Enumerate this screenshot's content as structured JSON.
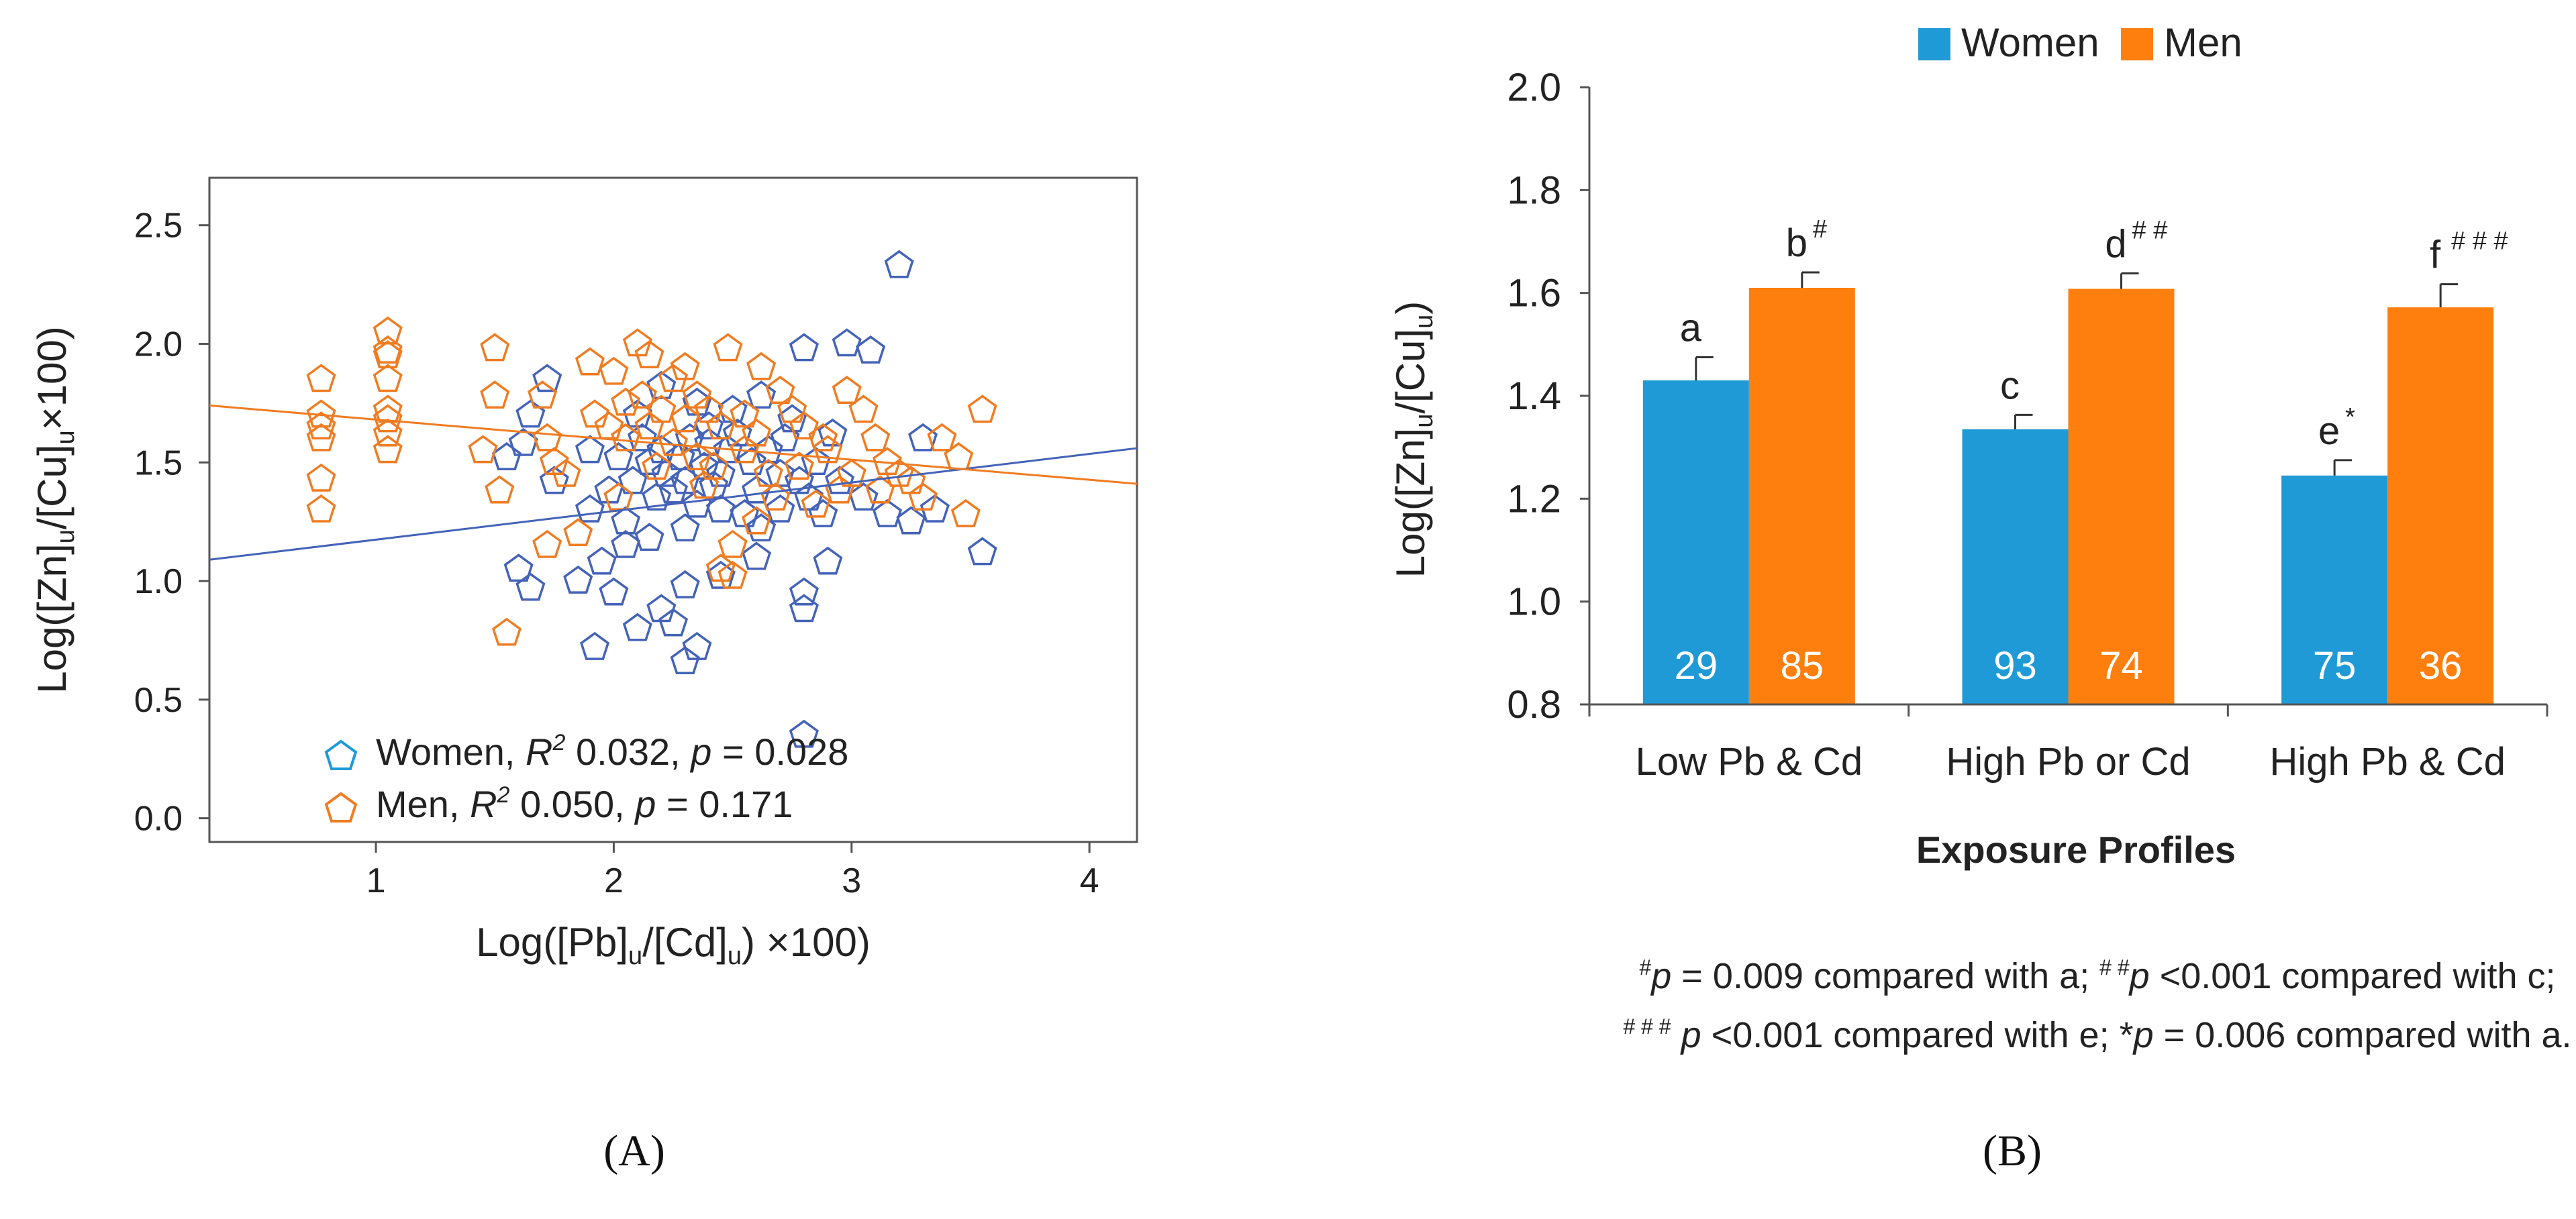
{
  "chart_data": [
    {
      "type": "scatter",
      "panel": "(A)",
      "xlabel": "Log([Pb]u/[Cd]u) ×100",
      "ylabel": "Log([Zn]u/[Cu]u×100)",
      "xlim": [
        0.3,
        4.2
      ],
      "ylim": [
        -0.1,
        2.7
      ],
      "xticks": [
        1,
        2,
        3,
        4
      ],
      "yticks": [
        0.0,
        0.5,
        1.0,
        1.5,
        2.0,
        2.5
      ],
      "ytick_labels": [
        "0.0",
        "0.5",
        "1.0",
        "1.5",
        "2.0",
        "2.5"
      ],
      "grid": false,
      "legend_position": "bottom-left",
      "series": [
        {
          "name": "Women",
          "legend_parts": [
            "Women, ",
            "R",
            "2",
            " 0.032, ",
            "p",
            " = 0.028"
          ],
          "color": "#4463b8",
          "legend_icon_color": "#1f9ad6",
          "fit_line": [
            [
              0.3,
              1.09
            ],
            [
              4.2,
              1.56
            ]
          ],
          "points": [
            [
              3.2,
              2.33
            ],
            [
              2.98,
              2.0
            ],
            [
              3.08,
              1.97
            ],
            [
              2.8,
              1.98
            ],
            [
              2.62,
              1.78
            ],
            [
              2.75,
              1.68
            ],
            [
              2.5,
              1.72
            ],
            [
              2.35,
              1.75
            ],
            [
              2.2,
              1.82
            ],
            [
              2.4,
              1.65
            ],
            [
              2.1,
              1.7
            ],
            [
              1.9,
              1.55
            ],
            [
              1.72,
              1.85
            ],
            [
              1.65,
              1.7
            ],
            [
              1.62,
              1.58
            ],
            [
              1.55,
              1.52
            ],
            [
              1.75,
              1.42
            ],
            [
              1.9,
              1.3
            ],
            [
              2.05,
              1.25
            ],
            [
              2.15,
              1.18
            ],
            [
              2.3,
              1.22
            ],
            [
              2.45,
              1.3
            ],
            [
              2.6,
              1.38
            ],
            [
              2.7,
              1.45
            ],
            [
              2.85,
              1.5
            ],
            [
              2.95,
              1.42
            ],
            [
              3.05,
              1.35
            ],
            [
              3.15,
              1.28
            ],
            [
              3.25,
              1.25
            ],
            [
              3.35,
              1.3
            ],
            [
              3.3,
              1.6
            ],
            [
              3.55,
              1.12
            ],
            [
              2.9,
              1.08
            ],
            [
              2.6,
              1.1
            ],
            [
              2.45,
              1.02
            ],
            [
              2.3,
              0.98
            ],
            [
              2.2,
              0.88
            ],
            [
              2.25,
              0.82
            ],
            [
              2.1,
              0.8
            ],
            [
              2.35,
              0.72
            ],
            [
              2.3,
              0.66
            ],
            [
              1.92,
              0.72
            ],
            [
              2.0,
              0.95
            ],
            [
              2.8,
              0.95
            ],
            [
              2.8,
              0.88
            ],
            [
              2.8,
              0.35
            ],
            [
              1.6,
              1.05
            ],
            [
              1.65,
              0.97
            ],
            [
              1.85,
              1.0
            ],
            [
              1.95,
              1.08
            ],
            [
              2.05,
              1.15
            ],
            [
              2.18,
              1.35
            ],
            [
              2.22,
              1.45
            ],
            [
              2.28,
              1.52
            ],
            [
              2.32,
              1.6
            ],
            [
              2.38,
              1.48
            ],
            [
              2.42,
              1.4
            ],
            [
              2.48,
              1.55
            ],
            [
              2.52,
              1.62
            ],
            [
              2.58,
              1.5
            ],
            [
              2.65,
              1.55
            ],
            [
              2.72,
              1.6
            ],
            [
              2.78,
              1.42
            ],
            [
              2.82,
              1.35
            ],
            [
              2.88,
              1.28
            ],
            [
              2.92,
              1.62
            ],
            [
              2.12,
              1.6
            ],
            [
              2.08,
              1.42
            ],
            [
              2.02,
              1.52
            ],
            [
              1.98,
              1.38
            ],
            [
              2.15,
              1.5
            ],
            [
              2.25,
              1.38
            ],
            [
              2.35,
              1.32
            ],
            [
              2.45,
              1.45
            ],
            [
              2.55,
              1.28
            ],
            [
              2.62,
              1.22
            ],
            [
              2.7,
              1.3
            ],
            [
              2.3,
              1.42
            ],
            [
              2.2,
              1.55
            ],
            [
              2.4,
              1.58
            ]
          ]
        },
        {
          "name": "Men",
          "legend_parts": [
            "Men, ",
            "R",
            "2",
            " 0.050, ",
            "p",
            " = 0.171"
          ],
          "color": "#f07c22",
          "legend_icon_color": "#f07c22",
          "fit_line": [
            [
              0.3,
              1.74
            ],
            [
              4.2,
              1.41
            ]
          ],
          "points": [
            [
              0.77,
              1.85
            ],
            [
              0.77,
              1.7
            ],
            [
              0.77,
              1.65
            ],
            [
              0.77,
              1.6
            ],
            [
              0.77,
              1.43
            ],
            [
              0.77,
              1.3
            ],
            [
              1.05,
              2.05
            ],
            [
              1.05,
              1.97
            ],
            [
              1.05,
              1.95
            ],
            [
              1.05,
              1.85
            ],
            [
              1.05,
              1.72
            ],
            [
              1.05,
              1.68
            ],
            [
              1.05,
              1.62
            ],
            [
              1.05,
              1.55
            ],
            [
              1.5,
              1.98
            ],
            [
              1.5,
              1.78
            ],
            [
              1.45,
              1.55
            ],
            [
              1.52,
              1.38
            ],
            [
              1.55,
              0.78
            ],
            [
              1.7,
              1.78
            ],
            [
              1.72,
              1.6
            ],
            [
              1.75,
              1.5
            ],
            [
              1.8,
              1.45
            ],
            [
              1.72,
              1.15
            ],
            [
              1.85,
              1.2
            ],
            [
              1.9,
              1.92
            ],
            [
              2.0,
              1.88
            ],
            [
              2.05,
              1.75
            ],
            [
              2.1,
              2.0
            ],
            [
              2.15,
              1.95
            ],
            [
              2.25,
              1.85
            ],
            [
              2.35,
              1.78
            ],
            [
              2.48,
              1.98
            ],
            [
              2.55,
              1.7
            ],
            [
              2.62,
              1.9
            ],
            [
              2.7,
              1.8
            ],
            [
              2.75,
              1.72
            ],
            [
              2.8,
              1.65
            ],
            [
              2.9,
              1.55
            ],
            [
              2.98,
              1.8
            ],
            [
              3.05,
              1.72
            ],
            [
              3.1,
              1.6
            ],
            [
              3.15,
              1.5
            ],
            [
              3.2,
              1.45
            ],
            [
              3.25,
              1.42
            ],
            [
              3.3,
              1.35
            ],
            [
              3.38,
              1.6
            ],
            [
              3.45,
              1.52
            ],
            [
              3.55,
              1.72
            ],
            [
              3.48,
              1.28
            ],
            [
              3.0,
              1.45
            ],
            [
              2.95,
              1.38
            ],
            [
              2.85,
              1.32
            ],
            [
              2.65,
              1.45
            ],
            [
              2.6,
              1.62
            ],
            [
              2.55,
              1.55
            ],
            [
              2.45,
              1.65
            ],
            [
              2.4,
              1.72
            ],
            [
              2.3,
              1.68
            ],
            [
              2.2,
              1.72
            ],
            [
              2.12,
              1.78
            ],
            [
              2.05,
              1.6
            ],
            [
              1.98,
              1.65
            ],
            [
              1.92,
              1.7
            ],
            [
              2.25,
              1.58
            ],
            [
              2.35,
              1.52
            ],
            [
              2.42,
              1.48
            ],
            [
              2.18,
              1.48
            ],
            [
              2.5,
              1.15
            ],
            [
              2.45,
              1.05
            ],
            [
              2.5,
              1.02
            ],
            [
              2.6,
              1.25
            ],
            [
              2.38,
              1.4
            ],
            [
              2.02,
              1.35
            ],
            [
              2.68,
              1.35
            ],
            [
              2.78,
              1.48
            ],
            [
              2.88,
              1.6
            ],
            [
              3.12,
              1.38
            ],
            [
              2.15,
              1.65
            ],
            [
              2.3,
              1.9
            ]
          ]
        }
      ]
    },
    {
      "type": "bar",
      "panel": "(B)",
      "title": "",
      "categories": [
        "Low Pb & Cd",
        "High Pb or Cd",
        "High Pb & Cd"
      ],
      "xlabel": "Exposure Profiles",
      "ylabel": "Log([Zn]u/[Cu]u)",
      "ylim": [
        0.8,
        2.0
      ],
      "yticks": [
        0.8,
        1.0,
        1.2,
        1.4,
        1.6,
        1.8,
        2.0
      ],
      "ytick_labels": [
        "0.8",
        "1.0",
        "1.2",
        "1.4",
        "1.6",
        "1.8",
        "2.0"
      ],
      "grid": false,
      "legend_position": "top-center",
      "series": [
        {
          "name": "Women",
          "color": "#1f9ad6",
          "values": [
            1.43,
            1.335,
            1.245
          ],
          "errors": [
            0.045,
            0.028,
            0.03
          ],
          "letters": [
            "a",
            "c",
            "e"
          ],
          "markers": [
            "",
            "",
            "*"
          ],
          "n": [
            "29",
            "93",
            "75"
          ]
        },
        {
          "name": "Men",
          "color": "#ff7f0e",
          "values": [
            1.61,
            1.608,
            1.572
          ],
          "errors": [
            0.03,
            0.03,
            0.045
          ],
          "letters": [
            "b",
            "d",
            "f"
          ],
          "markers": [
            "#",
            "# #",
            "# # #"
          ],
          "n": [
            "85",
            "74",
            "36"
          ]
        }
      ],
      "footnotes": [
        [
          "#",
          "p",
          " = 0.009 compared with a; ",
          "# #",
          "p",
          " <0.001 compared with c;"
        ],
        [
          "# # #",
          " p",
          " <0.001 compared with e; *",
          "p",
          " = 0.006 compared with a."
        ]
      ]
    }
  ]
}
